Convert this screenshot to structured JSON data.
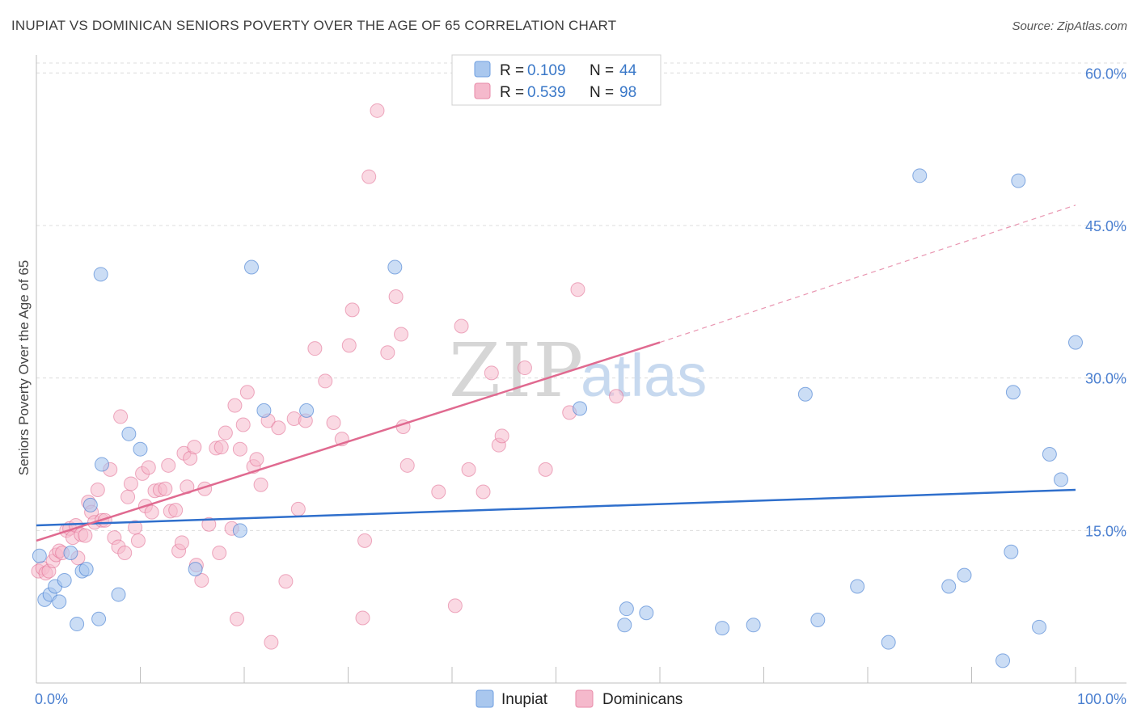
{
  "header": {
    "title": "INUPIAT VS DOMINICAN SENIORS POVERTY OVER THE AGE OF 65 CORRELATION CHART",
    "source": "Source: ZipAtlas.com"
  },
  "watermark": {
    "zip": "ZIP",
    "atlas": "atlas"
  },
  "legend": {
    "rows": [
      {
        "r_label": "R =",
        "r_value": "0.109",
        "n_label": "N =",
        "n_value": "44",
        "color": "#a9c7ee"
      },
      {
        "r_label": "R =",
        "r_value": "0.539",
        "n_label": "N =",
        "n_value": "98",
        "color": "#f5b9cc"
      }
    ]
  },
  "bottom_legend": {
    "items": [
      "Inupiat",
      "Dominicans"
    ]
  },
  "chart_data": {
    "type": "scatter",
    "xlabel": "",
    "ylabel": "Seniors Poverty Over the Age of 65",
    "xlim": [
      0,
      100
    ],
    "ylim": [
      0,
      60
    ],
    "x_tick_labels": [
      "0.0%",
      "100.0%"
    ],
    "y_ticks": [
      15,
      30,
      45,
      60
    ],
    "y_tick_labels": [
      "15.0%",
      "30.0%",
      "45.0%",
      "60.0%"
    ],
    "grid": true,
    "colors": {
      "inupiat": "#2f6fcc",
      "dominicans": "#e06a90",
      "inupiat_fill": "#a9c7ee",
      "dominicans_fill": "#f5b9cc"
    },
    "series": [
      {
        "name": "Inupiat",
        "r": 0.109,
        "n": 44,
        "trend": {
          "x": [
            0,
            100
          ],
          "y": [
            15.5,
            19.0
          ]
        },
        "points": [
          [
            0.3,
            12.5
          ],
          [
            0.8,
            8.2
          ],
          [
            1.3,
            8.7
          ],
          [
            1.8,
            9.5
          ],
          [
            2.2,
            8.0
          ],
          [
            2.7,
            10.1
          ],
          [
            3.3,
            12.8
          ],
          [
            3.9,
            5.8
          ],
          [
            4.4,
            11.0
          ],
          [
            4.8,
            11.2
          ],
          [
            5.2,
            17.5
          ],
          [
            6.2,
            40.2
          ],
          [
            6.3,
            21.5
          ],
          [
            7.9,
            8.7
          ],
          [
            6.0,
            6.3
          ],
          [
            8.9,
            24.5
          ],
          [
            10.0,
            23.0
          ],
          [
            15.3,
            11.2
          ],
          [
            19.6,
            15.0
          ],
          [
            20.7,
            40.9
          ],
          [
            21.9,
            26.8
          ],
          [
            26.0,
            26.8
          ],
          [
            34.5,
            40.9
          ],
          [
            52.3,
            27.0
          ],
          [
            56.6,
            5.7
          ],
          [
            56.8,
            7.3
          ],
          [
            58.7,
            6.9
          ],
          [
            66.0,
            5.4
          ],
          [
            69.0,
            5.7
          ],
          [
            74.0,
            28.4
          ],
          [
            75.2,
            6.2
          ],
          [
            79.0,
            9.5
          ],
          [
            82.0,
            4.0
          ],
          [
            85.0,
            49.9
          ],
          [
            87.8,
            9.5
          ],
          [
            89.3,
            10.6
          ],
          [
            93.0,
            2.2
          ],
          [
            93.8,
            12.9
          ],
          [
            94.0,
            28.6
          ],
          [
            94.5,
            49.4
          ],
          [
            96.5,
            5.5
          ],
          [
            97.5,
            22.5
          ],
          [
            98.6,
            20.0
          ],
          [
            100.0,
            33.5
          ]
        ]
      },
      {
        "name": "Dominicans",
        "r": 0.539,
        "n": 98,
        "trend": {
          "x": [
            0,
            60,
            100
          ],
          "y": [
            14.0,
            33.5,
            47.0
          ]
        },
        "points": [
          [
            0.2,
            11.0
          ],
          [
            0.6,
            11.3
          ],
          [
            0.9,
            10.8
          ],
          [
            1.2,
            11.0
          ],
          [
            1.6,
            12.0
          ],
          [
            1.9,
            12.6
          ],
          [
            2.2,
            13.0
          ],
          [
            2.5,
            12.8
          ],
          [
            2.9,
            15.0
          ],
          [
            3.2,
            15.2
          ],
          [
            3.5,
            14.3
          ],
          [
            3.8,
            15.5
          ],
          [
            4.0,
            12.3
          ],
          [
            4.3,
            14.6
          ],
          [
            4.7,
            14.5
          ],
          [
            5.0,
            17.8
          ],
          [
            5.3,
            16.8
          ],
          [
            5.6,
            15.8
          ],
          [
            5.9,
            19.0
          ],
          [
            6.3,
            16.0
          ],
          [
            6.6,
            16.0
          ],
          [
            7.1,
            21.0
          ],
          [
            7.5,
            14.3
          ],
          [
            7.9,
            13.4
          ],
          [
            8.1,
            26.2
          ],
          [
            8.5,
            12.8
          ],
          [
            8.8,
            18.3
          ],
          [
            9.1,
            19.6
          ],
          [
            9.5,
            15.3
          ],
          [
            9.8,
            14.0
          ],
          [
            10.2,
            20.6
          ],
          [
            10.5,
            17.4
          ],
          [
            10.8,
            21.2
          ],
          [
            11.1,
            16.8
          ],
          [
            11.4,
            18.9
          ],
          [
            11.9,
            19.0
          ],
          [
            12.4,
            19.1
          ],
          [
            12.7,
            21.4
          ],
          [
            12.9,
            16.9
          ],
          [
            13.4,
            17.0
          ],
          [
            13.7,
            13.0
          ],
          [
            14.0,
            13.8
          ],
          [
            14.2,
            22.6
          ],
          [
            14.5,
            19.3
          ],
          [
            14.8,
            22.1
          ],
          [
            15.2,
            23.2
          ],
          [
            15.4,
            11.6
          ],
          [
            15.9,
            10.1
          ],
          [
            16.2,
            19.1
          ],
          [
            16.6,
            15.6
          ],
          [
            17.3,
            23.1
          ],
          [
            17.6,
            12.8
          ],
          [
            17.8,
            23.2
          ],
          [
            18.2,
            24.6
          ],
          [
            18.8,
            15.2
          ],
          [
            19.1,
            27.3
          ],
          [
            19.3,
            6.3
          ],
          [
            19.6,
            23.0
          ],
          [
            19.9,
            25.4
          ],
          [
            20.3,
            28.6
          ],
          [
            20.9,
            21.3
          ],
          [
            21.2,
            22.0
          ],
          [
            21.6,
            19.5
          ],
          [
            22.3,
            25.8
          ],
          [
            22.6,
            4.0
          ],
          [
            23.3,
            25.1
          ],
          [
            24.0,
            10.0
          ],
          [
            24.8,
            26.0
          ],
          [
            25.2,
            17.1
          ],
          [
            25.9,
            25.8
          ],
          [
            26.8,
            32.9
          ],
          [
            27.8,
            29.7
          ],
          [
            28.6,
            25.6
          ],
          [
            29.4,
            24.0
          ],
          [
            30.1,
            33.2
          ],
          [
            30.4,
            36.7
          ],
          [
            31.4,
            6.4
          ],
          [
            31.6,
            14.0
          ],
          [
            32.0,
            49.8
          ],
          [
            32.8,
            56.3
          ],
          [
            33.8,
            32.5
          ],
          [
            34.6,
            38.0
          ],
          [
            35.1,
            34.3
          ],
          [
            35.3,
            25.2
          ],
          [
            35.7,
            21.4
          ],
          [
            38.7,
            18.8
          ],
          [
            40.3,
            7.6
          ],
          [
            40.9,
            35.1
          ],
          [
            41.6,
            21.0
          ],
          [
            43.0,
            18.8
          ],
          [
            43.8,
            30.5
          ],
          [
            44.5,
            23.4
          ],
          [
            44.8,
            24.3
          ],
          [
            47.0,
            31.0
          ],
          [
            49.0,
            21.0
          ],
          [
            51.3,
            26.6
          ],
          [
            52.1,
            38.7
          ],
          [
            55.8,
            28.2
          ]
        ]
      }
    ]
  }
}
